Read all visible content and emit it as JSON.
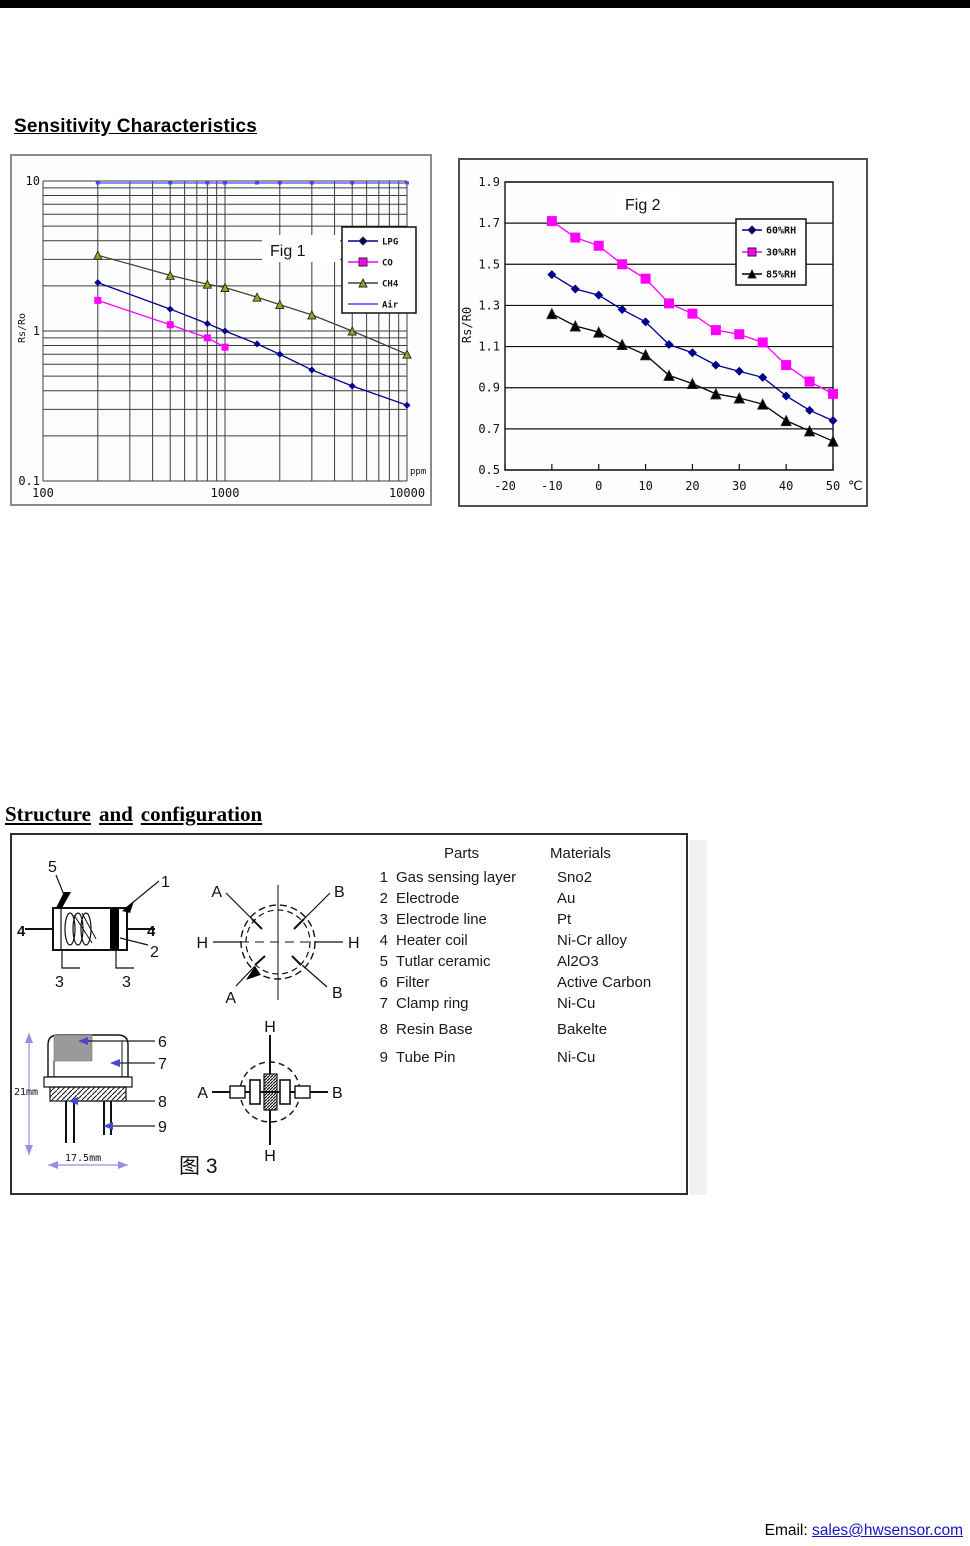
{
  "page": {
    "heading_sensitivity": "Sensitivity Characteristics",
    "structure_heading_words": [
      "Structure",
      "and",
      "configuration"
    ]
  },
  "footer": {
    "email_label": "Email:",
    "email_link": "sales@hwsensor.com"
  },
  "chart_data": [
    {
      "type": "line",
      "scale": "log-log",
      "title": "Fig 1",
      "xlabel": "ppm",
      "ylabel": "Rs/Ro",
      "xlim": [
        100,
        10000
      ],
      "ylim": [
        0.1,
        10
      ],
      "xticks": [
        100,
        1000,
        10000
      ],
      "xtick_labels": [
        "100",
        "1000",
        "10000"
      ],
      "yticks": [
        10,
        1,
        0.1
      ],
      "ytick_labels": [
        "10",
        "1",
        "0.1"
      ],
      "grid": "log minor+major, both axes",
      "legend_position": "upper right",
      "x": [
        200,
        500,
        800,
        1000,
        1500,
        2000,
        3000,
        5000,
        10000
      ],
      "series": [
        {
          "name": "LPG",
          "color": "#00008b",
          "marker": "diamond",
          "values": [
            2.1,
            1.4,
            1.12,
            1.0,
            0.82,
            0.7,
            0.55,
            0.43,
            0.32
          ]
        },
        {
          "name": "CO",
          "color": "#ff00ff",
          "marker": "square",
          "values": [
            1.6,
            1.1,
            0.9,
            0.78,
            null,
            null,
            null,
            null,
            null
          ]
        },
        {
          "name": "CH4",
          "color": "#a0a020",
          "line_color": "#44442c",
          "marker": "triangle",
          "values": [
            3.2,
            2.35,
            2.05,
            1.95,
            1.68,
            1.5,
            1.28,
            1.0,
            0.7
          ]
        },
        {
          "name": "Air",
          "color": "#4848ff",
          "marker": "dash",
          "values": [
            9.7,
            9.7,
            9.7,
            9.7,
            9.7,
            9.7,
            9.7,
            9.7,
            9.7
          ]
        }
      ]
    },
    {
      "type": "line",
      "scale": "linear",
      "title": "Fig 2",
      "xlabel": "℃",
      "ylabel": "Rs/R0",
      "xlim": [
        -20,
        50
      ],
      "ylim": [
        0.5,
        1.9
      ],
      "xticks": [
        -20,
        -10,
        0,
        10,
        20,
        30,
        40,
        50
      ],
      "xtick_labels": [
        "-20",
        "-10",
        "0",
        "10",
        "20",
        "30",
        "40",
        "50"
      ],
      "yticks": [
        0.5,
        0.7,
        0.9,
        1.1,
        1.3,
        1.5,
        1.7,
        1.9
      ],
      "ytick_labels": [
        "0.5",
        "0.7",
        "0.9",
        "1.1",
        "1.3",
        "1.5",
        "1.7",
        "1.9"
      ],
      "grid": "horizontal gridlines at y ticks only",
      "legend_position": "upper right",
      "x": [
        -10,
        -5,
        0,
        5,
        10,
        15,
        20,
        25,
        30,
        35,
        40,
        45,
        50
      ],
      "series": [
        {
          "name": "60%RH",
          "color": "#00008b",
          "marker": "diamond",
          "values": [
            1.45,
            1.38,
            1.35,
            1.28,
            1.22,
            1.11,
            1.07,
            1.01,
            0.98,
            0.95,
            0.86,
            0.79,
            0.74
          ]
        },
        {
          "name": "30%RH",
          "color": "#ff00ff",
          "marker": "square",
          "values": [
            1.71,
            1.63,
            1.59,
            1.5,
            1.43,
            1.31,
            1.26,
            1.18,
            1.16,
            1.12,
            1.01,
            0.93,
            0.87
          ]
        },
        {
          "name": "85%RH",
          "color": "#000000",
          "marker": "triangle",
          "values": [
            1.26,
            1.2,
            1.17,
            1.11,
            1.06,
            0.96,
            0.92,
            0.87,
            0.85,
            0.82,
            0.74,
            0.69,
            0.64
          ]
        }
      ]
    }
  ],
  "structure": {
    "table": {
      "col_parts": "Parts",
      "col_materials": "Materials",
      "rows": [
        {
          "num": "1",
          "part": "Gas sensing layer",
          "material": "Sno2"
        },
        {
          "num": "2",
          "part": "Electrode",
          "material": "Au"
        },
        {
          "num": "3",
          "part": "Electrode line",
          "material": "Pt"
        },
        {
          "num": "4",
          "part": "Heater coil",
          "material": "Ni-Cr alloy"
        },
        {
          "num": "5",
          "part": "Tutlar ceramic",
          "material": "Al2O3"
        },
        {
          "num": "6",
          "part": "Filter",
          "material": "Active Carbon"
        },
        {
          "num": "7",
          "part": "Clamp ring",
          "material": "Ni-Cu"
        },
        {
          "num": "8",
          "part": "Resin Base",
          "material": "Bakelte"
        },
        {
          "num": "9",
          "part": "Tube Pin",
          "material": "Ni-Cu"
        }
      ]
    },
    "diagram": {
      "caption": "图 3",
      "cross_section": {
        "n5": "5",
        "n1": "1",
        "n4_left": "4",
        "n4_right": "4",
        "n2": "2",
        "n3_left": "3",
        "n3_right": "3"
      },
      "pinout": {
        "a_top": "A",
        "b_top": "B",
        "h_left": "H",
        "h_right": "H",
        "a_bottom": "A",
        "b_bottom": "B"
      },
      "package": {
        "c6": "6",
        "c7": "7",
        "c8": "8",
        "c9": "9",
        "dim_height": "21mm",
        "dim_width": "17.5mm"
      },
      "schematic": {
        "a": "A",
        "b": "B",
        "h_top": "H",
        "h_bottom": "H"
      }
    }
  }
}
